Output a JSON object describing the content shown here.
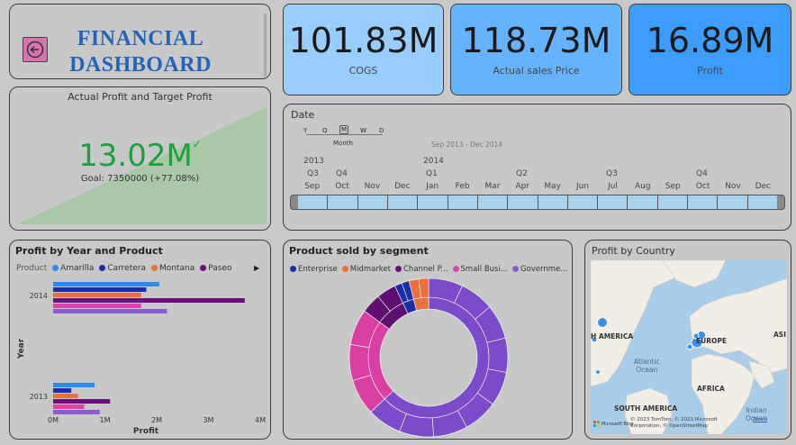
{
  "header": {
    "title_line1": "FINANCIAL",
    "title_line2": "DASHBOARD"
  },
  "kpis": [
    {
      "value": "101.83M",
      "label": "COGS",
      "color": "#99ccff"
    },
    {
      "value": "118.73M",
      "label": "Actual sales Price",
      "color": "#66b2ff"
    },
    {
      "value": "16.89M",
      "label": "Profit",
      "color": "#3d9dff"
    }
  ],
  "gauge": {
    "title": "Actual Profit and Target Profit",
    "value": "13.02M",
    "check": "✓",
    "goal": "Goal: 7350000 (+77.08%)"
  },
  "date_slicer": {
    "title": "Date",
    "levels": [
      "Y",
      "Q",
      "M",
      "W",
      "D"
    ],
    "selected_level": "Month",
    "range": "Sep 2013 - Dec 2014",
    "years": [
      "2013",
      "2014"
    ],
    "quarters": [
      "Q3",
      "Q4",
      "Q1",
      "Q2",
      "Q3",
      "Q4"
    ],
    "months": [
      "Sep",
      "Oct",
      "Nov",
      "Dec",
      "Jan",
      "Feb",
      "Mar",
      "Apr",
      "May",
      "Jun",
      "Jul",
      "Aug",
      "Sep",
      "Oct",
      "Nov",
      "Dec"
    ]
  },
  "profit_chart": {
    "title": "Profit by Year and Product",
    "legend_title": "Product",
    "more_icon": "▶",
    "chart_data": {
      "type": "bar",
      "orientation": "horizontal",
      "categories": [
        "2014",
        "2013"
      ],
      "series": [
        {
          "name": "Amarilla",
          "color": "#2b8cf0",
          "values": [
            2.05,
            0.8
          ]
        },
        {
          "name": "Carretera",
          "color": "#1a2ea8",
          "values": [
            1.8,
            0.35
          ]
        },
        {
          "name": "Montana",
          "color": "#e8703a",
          "values": [
            1.7,
            0.48
          ]
        },
        {
          "name": "Paseo",
          "color": "#6b0f7a",
          "values": [
            3.7,
            1.1
          ]
        },
        {
          "name": "",
          "color": "#e040a8",
          "values": [
            1.7,
            0.6
          ]
        },
        {
          "name": "",
          "color": "#8a5cd4",
          "values": [
            2.2,
            0.9
          ]
        }
      ],
      "xticks": [
        "0M",
        "1M",
        "2M",
        "3M",
        "4M"
      ],
      "xlim": [
        0,
        4
      ],
      "xlabel": "Profit",
      "ylabel": "Year"
    }
  },
  "segment_chart": {
    "title": "Product sold by segment",
    "chart_data": {
      "type": "pie",
      "subtype": "sunburst",
      "series": [
        {
          "name": "Enterprise",
          "color": "#1a2ea8"
        },
        {
          "name": "Midmarket",
          "color": "#e8703a"
        },
        {
          "name": "Channel P...",
          "color": "#6b0f7a"
        },
        {
          "name": "Small Busi...",
          "color": "#e040a8"
        },
        {
          "name": "Governme...",
          "color": "#8a5cd4"
        }
      ],
      "inner_slices": [
        {
          "segment": "Government",
          "value": 0.63,
          "color": "#7b4cc9"
        },
        {
          "segment": "Small Business",
          "value": 0.22,
          "color": "#d93fa0"
        },
        {
          "segment": "Channel Partners",
          "value": 0.08,
          "color": "#5f0f70"
        },
        {
          "segment": "Enterprise",
          "value": 0.03,
          "color": "#1a2ea8"
        },
        {
          "segment": "Midmarket",
          "value": 0.04,
          "color": "#e8703a"
        }
      ]
    }
  },
  "map": {
    "title": "Profit by Country",
    "labels": {
      "na": "H AMERICA",
      "europe": "EUROPE",
      "asia": "ASI",
      "atlantic": "Atlantic\nOcean",
      "sa": "SOUTH AMERICA",
      "africa": "AFRICA",
      "indian": "Indian\nOcean"
    },
    "attribution": "© 2023 TomTom, © 2023 Microsoft Corporation, © OpenStreetMap",
    "terms": "Terms",
    "bing": "Microsoft Bing"
  }
}
